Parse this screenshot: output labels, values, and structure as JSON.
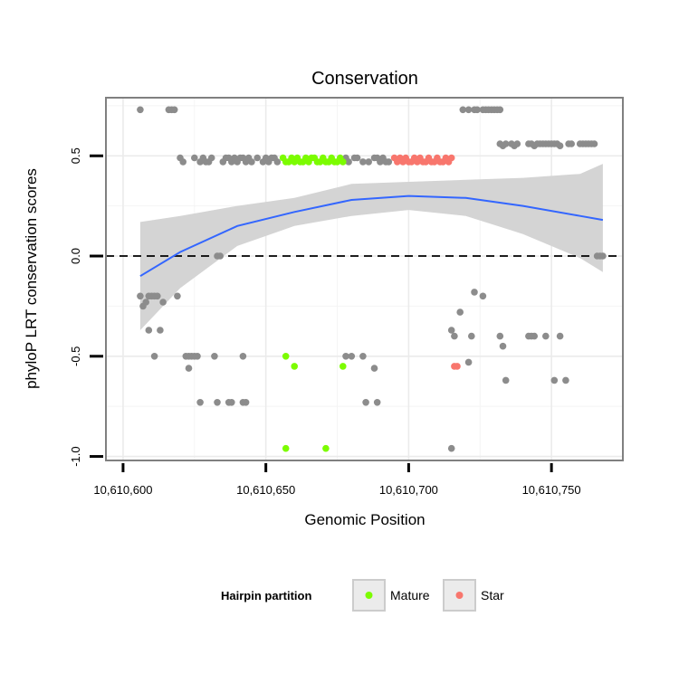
{
  "chart_data": {
    "type": "scatter",
    "title": "Conservation",
    "xlabel": "Genomic Position",
    "ylabel": "phyloP LRT conservation scores",
    "xlim": [
      10610594,
      10610775
    ],
    "ylim": [
      -1.02,
      0.79
    ],
    "x_ticks": [
      10610600,
      10610650,
      10610700,
      10610750
    ],
    "x_tick_labels": [
      "10,610,600",
      "10,610,650",
      "10,610,700",
      "10,610,750"
    ],
    "y_ticks": [
      -1.0,
      -0.5,
      0.0,
      0.5
    ],
    "y_tick_labels": [
      "-1.0",
      "-0.5",
      "0.0",
      "0.5"
    ],
    "grid": true,
    "reference_line": {
      "y": 0,
      "style": "dashed",
      "color": "#000000"
    },
    "legend": {
      "title": "Hairpin partition",
      "position": "bottom",
      "entries": [
        {
          "label": "Mature",
          "color": "#7CFC00"
        },
        {
          "label": "Star",
          "color": "#F8766D"
        }
      ]
    },
    "colors": {
      "other": "#8c8c8c",
      "Mature": "#7CFC00",
      "Star": "#F8766D",
      "smooth": "#3366FF",
      "band": "#d4d4d4"
    },
    "series": [
      {
        "name": "Mature",
        "points": [
          [
            10610656,
            0.49
          ],
          [
            10610657,
            0.47
          ],
          [
            10610658,
            0.47
          ],
          [
            10610659,
            0.49
          ],
          [
            10610660,
            0.47
          ],
          [
            10610661,
            0.49
          ],
          [
            10610662,
            0.47
          ],
          [
            10610663,
            0.47
          ],
          [
            10610664,
            0.49
          ],
          [
            10610665,
            0.47
          ],
          [
            10610666,
            0.49
          ],
          [
            10610667,
            0.49
          ],
          [
            10610668,
            0.47
          ],
          [
            10610669,
            0.47
          ],
          [
            10610670,
            0.49
          ],
          [
            10610671,
            0.47
          ],
          [
            10610672,
            0.47
          ],
          [
            10610673,
            0.49
          ],
          [
            10610674,
            0.47
          ],
          [
            10610675,
            0.47
          ],
          [
            10610676,
            0.49
          ],
          [
            10610677,
            0.47
          ],
          [
            10610657,
            -0.5
          ],
          [
            10610660,
            -0.55
          ],
          [
            10610677,
            -0.55
          ],
          [
            10610657,
            -0.96
          ],
          [
            10610671,
            -0.96
          ]
        ]
      },
      {
        "name": "Star",
        "points": [
          [
            10610695,
            0.49
          ],
          [
            10610696,
            0.47
          ],
          [
            10610697,
            0.49
          ],
          [
            10610698,
            0.47
          ],
          [
            10610699,
            0.49
          ],
          [
            10610700,
            0.47
          ],
          [
            10610701,
            0.47
          ],
          [
            10610702,
            0.49
          ],
          [
            10610703,
            0.47
          ],
          [
            10610704,
            0.49
          ],
          [
            10610705,
            0.47
          ],
          [
            10610706,
            0.47
          ],
          [
            10610707,
            0.49
          ],
          [
            10610708,
            0.47
          ],
          [
            10610709,
            0.47
          ],
          [
            10610710,
            0.49
          ],
          [
            10610711,
            0.47
          ],
          [
            10610712,
            0.47
          ],
          [
            10610713,
            0.49
          ],
          [
            10610714,
            0.47
          ],
          [
            10610715,
            0.49
          ],
          [
            10610716,
            -0.55
          ],
          [
            10610717,
            -0.55
          ]
        ]
      },
      {
        "name": "",
        "points": [
          [
            10610606,
            0.73
          ],
          [
            10610616,
            0.73
          ],
          [
            10610617,
            0.73
          ],
          [
            10610618,
            0.73
          ],
          [
            10610620,
            0.49
          ],
          [
            10610621,
            0.47
          ],
          [
            10610625,
            0.49
          ],
          [
            10610627,
            0.47
          ],
          [
            10610628,
            0.49
          ],
          [
            10610629,
            0.47
          ],
          [
            10610630,
            0.47
          ],
          [
            10610631,
            0.49
          ],
          [
            10610635,
            0.47
          ],
          [
            10610636,
            0.49
          ],
          [
            10610637,
            0.49
          ],
          [
            10610638,
            0.47
          ],
          [
            10610639,
            0.49
          ],
          [
            10610640,
            0.47
          ],
          [
            10610641,
            0.49
          ],
          [
            10610642,
            0.49
          ],
          [
            10610643,
            0.47
          ],
          [
            10610644,
            0.49
          ],
          [
            10610645,
            0.47
          ],
          [
            10610647,
            0.49
          ],
          [
            10610649,
            0.47
          ],
          [
            10610650,
            0.49
          ],
          [
            10610651,
            0.47
          ],
          [
            10610652,
            0.49
          ],
          [
            10610653,
            0.49
          ],
          [
            10610654,
            0.47
          ],
          [
            10610678,
            0.49
          ],
          [
            10610679,
            0.47
          ],
          [
            10610681,
            0.49
          ],
          [
            10610682,
            0.49
          ],
          [
            10610684,
            0.47
          ],
          [
            10610686,
            0.47
          ],
          [
            10610688,
            0.49
          ],
          [
            10610689,
            0.49
          ],
          [
            10610690,
            0.47
          ],
          [
            10610691,
            0.49
          ],
          [
            10610692,
            0.47
          ],
          [
            10610693,
            0.47
          ],
          [
            10610719,
            0.73
          ],
          [
            10610721,
            0.73
          ],
          [
            10610723,
            0.73
          ],
          [
            10610724,
            0.73
          ],
          [
            10610726,
            0.73
          ],
          [
            10610727,
            0.73
          ],
          [
            10610728,
            0.73
          ],
          [
            10610729,
            0.73
          ],
          [
            10610730,
            0.73
          ],
          [
            10610731,
            0.73
          ],
          [
            10610732,
            0.73
          ],
          [
            10610732,
            0.56
          ],
          [
            10610733,
            0.55
          ],
          [
            10610734,
            0.56
          ],
          [
            10610736,
            0.56
          ],
          [
            10610737,
            0.55
          ],
          [
            10610738,
            0.56
          ],
          [
            10610742,
            0.56
          ],
          [
            10610743,
            0.56
          ],
          [
            10610744,
            0.55
          ],
          [
            10610745,
            0.56
          ],
          [
            10610746,
            0.56
          ],
          [
            10610747,
            0.56
          ],
          [
            10610748,
            0.56
          ],
          [
            10610749,
            0.56
          ],
          [
            10610750,
            0.56
          ],
          [
            10610751,
            0.56
          ],
          [
            10610752,
            0.56
          ],
          [
            10610753,
            0.55
          ],
          [
            10610756,
            0.56
          ],
          [
            10610757,
            0.56
          ],
          [
            10610760,
            0.56
          ],
          [
            10610761,
            0.56
          ],
          [
            10610762,
            0.56
          ],
          [
            10610763,
            0.56
          ],
          [
            10610764,
            0.56
          ],
          [
            10610765,
            0.56
          ],
          [
            10610633,
            0.0
          ],
          [
            10610634,
            0.0
          ],
          [
            10610766,
            0.0
          ],
          [
            10610767,
            0.0
          ],
          [
            10610768,
            0.0
          ],
          [
            10610606,
            -0.2
          ],
          [
            10610607,
            -0.25
          ],
          [
            10610608,
            -0.23
          ],
          [
            10610609,
            -0.2
          ],
          [
            10610610,
            -0.2
          ],
          [
            10610611,
            -0.2
          ],
          [
            10610612,
            -0.2
          ],
          [
            10610614,
            -0.23
          ],
          [
            10610619,
            -0.2
          ],
          [
            10610609,
            -0.37
          ],
          [
            10610613,
            -0.37
          ],
          [
            10610611,
            -0.5
          ],
          [
            10610622,
            -0.5
          ],
          [
            10610623,
            -0.5
          ],
          [
            10610624,
            -0.5
          ],
          [
            10610625,
            -0.5
          ],
          [
            10610626,
            -0.5
          ],
          [
            10610632,
            -0.5
          ],
          [
            10610642,
            -0.5
          ],
          [
            10610623,
            -0.56
          ],
          [
            10610627,
            -0.73
          ],
          [
            10610633,
            -0.73
          ],
          [
            10610637,
            -0.73
          ],
          [
            10610638,
            -0.73
          ],
          [
            10610642,
            -0.73
          ],
          [
            10610643,
            -0.73
          ],
          [
            10610678,
            -0.5
          ],
          [
            10610680,
            -0.5
          ],
          [
            10610684,
            -0.5
          ],
          [
            10610688,
            -0.56
          ],
          [
            10610685,
            -0.73
          ],
          [
            10610689,
            -0.73
          ],
          [
            10610715,
            -0.96
          ],
          [
            10610715,
            -0.37
          ],
          [
            10610716,
            -0.4
          ],
          [
            10610718,
            -0.28
          ],
          [
            10610722,
            -0.4
          ],
          [
            10610723,
            -0.18
          ],
          [
            10610726,
            -0.2
          ],
          [
            10610721,
            -0.53
          ],
          [
            10610732,
            -0.4
          ],
          [
            10610733,
            -0.45
          ],
          [
            10610734,
            -0.62
          ],
          [
            10610742,
            -0.4
          ],
          [
            10610743,
            -0.4
          ],
          [
            10610744,
            -0.4
          ],
          [
            10610748,
            -0.4
          ],
          [
            10610751,
            -0.62
          ],
          [
            10610753,
            -0.4
          ],
          [
            10610755,
            -0.62
          ]
        ]
      }
    ],
    "smooth": {
      "method": "loess",
      "x": [
        10610606,
        10610620,
        10610640,
        10610660,
        10610680,
        10610700,
        10610720,
        10610740,
        10610760,
        10610768
      ],
      "y": [
        -0.1,
        0.02,
        0.15,
        0.22,
        0.28,
        0.3,
        0.29,
        0.25,
        0.2,
        0.18
      ],
      "lower": [
        -0.37,
        -0.16,
        0.05,
        0.15,
        0.2,
        0.23,
        0.2,
        0.11,
        -0.01,
        -0.08
      ],
      "upper": [
        0.17,
        0.2,
        0.25,
        0.29,
        0.36,
        0.37,
        0.38,
        0.39,
        0.41,
        0.46
      ]
    }
  }
}
